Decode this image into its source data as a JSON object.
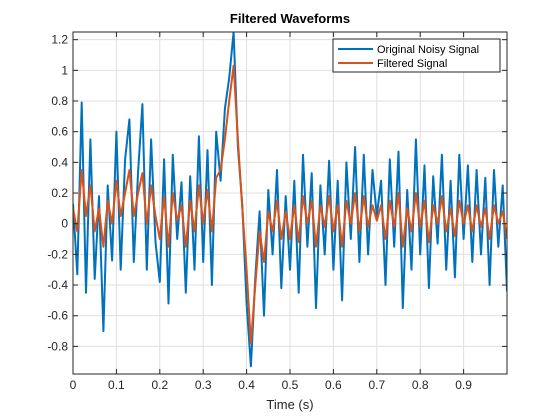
{
  "chart_data": {
    "type": "line",
    "title": "Filtered Waveforms",
    "xlabel": "Time (s)",
    "ylabel": "",
    "xlim": [
      0,
      1
    ],
    "ylim": [
      -0.98,
      1.25
    ],
    "xticks": [
      0,
      0.1,
      0.2,
      0.3,
      0.4,
      0.5,
      0.6,
      0.7,
      0.8,
      0.9
    ],
    "xtick_labels": [
      "0",
      "0.1",
      "0.2",
      "0.3",
      "0.4",
      "0.5",
      "0.6",
      "0.7",
      "0.8",
      "0.9"
    ],
    "yticks": [
      -0.8,
      -0.6,
      -0.4,
      -0.2,
      0,
      0.2,
      0.4,
      0.6,
      0.8,
      1,
      1.2
    ],
    "ytick_labels": [
      "-0.8",
      "-0.6",
      "-0.4",
      "-0.2",
      "0",
      "0.2",
      "0.4",
      "0.6",
      "0.8",
      "1",
      "1.2"
    ],
    "grid": true,
    "legend_position": "top-right",
    "series": [
      {
        "name": "Original Noisy Signal",
        "color": "#0072BD",
        "x": [
          0,
          0.01,
          0.02,
          0.03,
          0.04,
          0.05,
          0.06,
          0.07,
          0.08,
          0.09,
          0.1,
          0.11,
          0.12,
          0.13,
          0.14,
          0.15,
          0.16,
          0.17,
          0.18,
          0.19,
          0.2,
          0.21,
          0.22,
          0.23,
          0.24,
          0.25,
          0.26,
          0.27,
          0.28,
          0.29,
          0.3,
          0.31,
          0.32,
          0.33,
          0.34,
          0.35,
          0.36,
          0.37,
          0.38,
          0.39,
          0.4,
          0.41,
          0.42,
          0.43,
          0.44,
          0.45,
          0.46,
          0.47,
          0.48,
          0.49,
          0.5,
          0.51,
          0.52,
          0.53,
          0.54,
          0.55,
          0.56,
          0.57,
          0.58,
          0.59,
          0.6,
          0.61,
          0.62,
          0.63,
          0.64,
          0.65,
          0.66,
          0.67,
          0.68,
          0.69,
          0.7,
          0.71,
          0.72,
          0.73,
          0.74,
          0.75,
          0.76,
          0.77,
          0.78,
          0.79,
          0.8,
          0.81,
          0.82,
          0.83,
          0.84,
          0.85,
          0.86,
          0.87,
          0.88,
          0.89,
          0.9,
          0.91,
          0.92,
          0.93,
          0.94,
          0.95,
          0.96,
          0.97,
          0.98,
          0.99,
          1.0
        ],
        "y": [
          0.13,
          -0.33,
          0.79,
          -0.45,
          0.55,
          -0.36,
          0.18,
          -0.7,
          0.25,
          -0.24,
          0.6,
          -0.3,
          0.42,
          0.68,
          -0.25,
          0.34,
          0.78,
          -0.3,
          0.55,
          -0.12,
          -0.38,
          0.42,
          -0.52,
          0.45,
          -0.1,
          0.27,
          -0.45,
          0.31,
          -0.3,
          0.57,
          -0.25,
          0.48,
          -0.4,
          0.6,
          0.28,
          0.75,
          0.95,
          1.25,
          0.5,
          0.12,
          -0.52,
          -0.93,
          -0.35,
          0.08,
          -0.6,
          0.22,
          -0.2,
          0.35,
          -0.42,
          0.18,
          -0.3,
          0.28,
          -0.45,
          0.45,
          -0.15,
          0.33,
          -0.55,
          0.25,
          -0.2,
          0.41,
          -0.3,
          0.28,
          -0.5,
          0.4,
          -0.1,
          0.5,
          -0.25,
          0.45,
          -0.2,
          0.35,
          0.05,
          0.28,
          -0.4,
          0.42,
          -0.15,
          0.47,
          -0.55,
          0.22,
          -0.3,
          0.55,
          -0.2,
          0.38,
          -0.42,
          0.31,
          -0.13,
          0.45,
          -0.3,
          0.28,
          -0.35,
          0.45,
          -0.1,
          0.38,
          -0.25,
          0.35,
          -0.2,
          0.3,
          -0.4,
          0.35,
          -0.15,
          0.25,
          -0.44
        ]
      },
      {
        "name": "Filtered Signal",
        "color": "#D95319",
        "x": [
          0,
          0.01,
          0.02,
          0.03,
          0.04,
          0.05,
          0.06,
          0.07,
          0.08,
          0.09,
          0.1,
          0.11,
          0.12,
          0.13,
          0.14,
          0.15,
          0.16,
          0.17,
          0.18,
          0.19,
          0.2,
          0.21,
          0.22,
          0.23,
          0.24,
          0.25,
          0.26,
          0.27,
          0.28,
          0.29,
          0.3,
          0.31,
          0.32,
          0.33,
          0.34,
          0.35,
          0.36,
          0.37,
          0.38,
          0.39,
          0.4,
          0.41,
          0.42,
          0.43,
          0.44,
          0.45,
          0.46,
          0.47,
          0.48,
          0.49,
          0.5,
          0.51,
          0.52,
          0.53,
          0.54,
          0.55,
          0.56,
          0.57,
          0.58,
          0.59,
          0.6,
          0.61,
          0.62,
          0.63,
          0.64,
          0.65,
          0.66,
          0.67,
          0.68,
          0.69,
          0.7,
          0.71,
          0.72,
          0.73,
          0.74,
          0.75,
          0.76,
          0.77,
          0.78,
          0.79,
          0.8,
          0.81,
          0.82,
          0.83,
          0.84,
          0.85,
          0.86,
          0.87,
          0.88,
          0.89,
          0.9,
          0.91,
          0.92,
          0.93,
          0.94,
          0.95,
          0.96,
          0.97,
          0.98,
          0.99,
          1.0
        ],
        "y": [
          0.1,
          -0.05,
          0.35,
          0.05,
          0.25,
          -0.05,
          0.1,
          -0.15,
          0.15,
          0.0,
          0.28,
          0.05,
          0.2,
          0.35,
          0.05,
          0.2,
          0.33,
          0.0,
          0.25,
          0.05,
          -0.1,
          0.18,
          -0.15,
          0.2,
          0.02,
          0.12,
          -0.15,
          0.15,
          -0.05,
          0.25,
          0.0,
          0.22,
          -0.05,
          0.3,
          0.35,
          0.55,
          0.8,
          1.03,
          0.55,
          0.1,
          -0.3,
          -0.78,
          -0.4,
          -0.05,
          -0.25,
          0.08,
          -0.05,
          0.15,
          -0.1,
          0.08,
          -0.1,
          0.12,
          -0.12,
          0.18,
          0.0,
          0.15,
          -0.15,
          0.12,
          -0.02,
          0.18,
          -0.05,
          0.12,
          -0.15,
          0.15,
          0.0,
          0.2,
          -0.05,
          0.18,
          -0.02,
          0.12,
          0.02,
          0.12,
          -0.1,
          0.15,
          -0.02,
          0.2,
          -0.15,
          0.1,
          -0.05,
          0.2,
          -0.02,
          0.15,
          -0.12,
          0.12,
          0.0,
          0.18,
          -0.05,
          0.1,
          -0.08,
          0.15,
          0.0,
          0.12,
          -0.05,
          0.12,
          -0.02,
          0.1,
          -0.1,
          0.12,
          0.0,
          0.08,
          -0.1
        ]
      }
    ]
  }
}
